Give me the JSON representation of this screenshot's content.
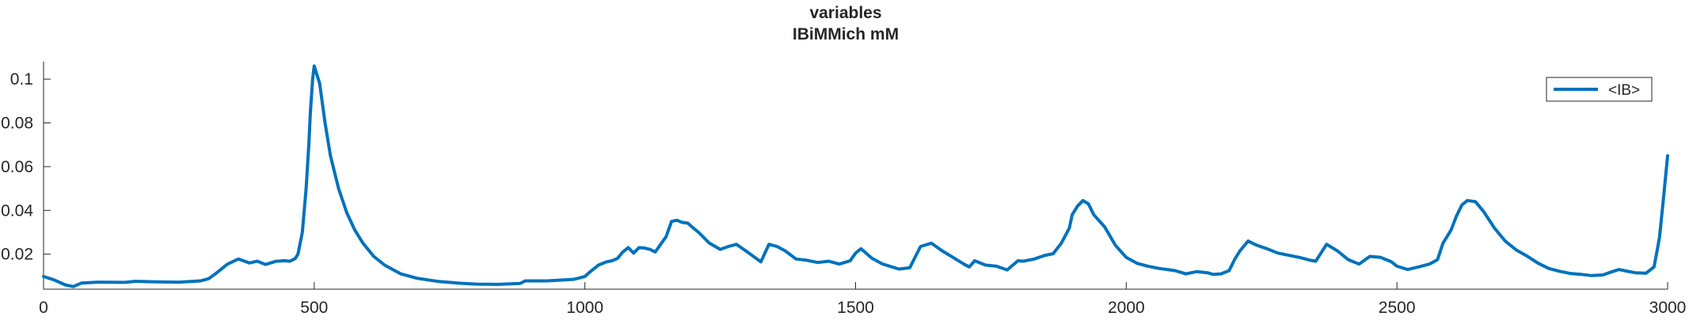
{
  "chart_data": {
    "type": "line",
    "title": "variables",
    "subtitle": "IBiMMich mM",
    "xlabel": "",
    "ylabel": "",
    "xlim": [
      0,
      3000
    ],
    "ylim": [
      0.004,
      0.108
    ],
    "grid": false,
    "legend_position": "top-right",
    "x_ticks": [
      0,
      500,
      1000,
      1500,
      2000,
      2500,
      3000
    ],
    "x_tick_labels": [
      "0",
      "500",
      "1000",
      "1500",
      "2000",
      "2500",
      "3000"
    ],
    "y_ticks": [
      0.02,
      0.04,
      0.06,
      0.08,
      0.1
    ],
    "y_tick_labels": [
      "0.02",
      "0.04",
      "0.06",
      "0.08",
      "0.1"
    ],
    "series": [
      {
        "name": "<IB>",
        "color": "#0072BD",
        "x": [
          0,
          20,
          40,
          55,
          70,
          100,
          150,
          170,
          200,
          250,
          290,
          305,
          320,
          340,
          360,
          380,
          395,
          410,
          430,
          445,
          455,
          465,
          470,
          478,
          485,
          490,
          493,
          497,
          500,
          510,
          520,
          530,
          545,
          560,
          575,
          590,
          610,
          630,
          660,
          690,
          730,
          770,
          800,
          840,
          880,
          890,
          930,
          980,
          1000,
          1010,
          1025,
          1040,
          1050,
          1060,
          1070,
          1080,
          1090,
          1100,
          1110,
          1120,
          1130,
          1150,
          1160,
          1170,
          1180,
          1190,
          1200,
          1210,
          1230,
          1250,
          1265,
          1280,
          1300,
          1325,
          1340,
          1355,
          1370,
          1390,
          1410,
          1430,
          1450,
          1470,
          1490,
          1500,
          1510,
          1530,
          1550,
          1580,
          1600,
          1620,
          1640,
          1660,
          1680,
          1700,
          1710,
          1720,
          1740,
          1760,
          1780,
          1800,
          1810,
          1830,
          1850,
          1865,
          1880,
          1895,
          1900,
          1910,
          1920,
          1930,
          1940,
          1960,
          1980,
          2000,
          2020,
          2040,
          2060,
          2090,
          2110,
          2130,
          2150,
          2160,
          2175,
          2190,
          2200,
          2210,
          2225,
          2240,
          2260,
          2280,
          2300,
          2320,
          2340,
          2350,
          2370,
          2390,
          2410,
          2430,
          2450,
          2470,
          2490,
          2500,
          2520,
          2540,
          2560,
          2575,
          2585,
          2600,
          2610,
          2620,
          2630,
          2645,
          2660,
          2680,
          2700,
          2720,
          2740,
          2760,
          2780,
          2800,
          2820,
          2840,
          2860,
          2880,
          2900,
          2910,
          2920,
          2940,
          2960,
          2975,
          2985,
          2992,
          3000
        ],
        "y": [
          0.0098,
          0.0082,
          0.006,
          0.0052,
          0.0068,
          0.0072,
          0.0071,
          0.0076,
          0.0074,
          0.0072,
          0.0078,
          0.0088,
          0.0115,
          0.0155,
          0.0178,
          0.016,
          0.0168,
          0.0153,
          0.0168,
          0.017,
          0.0168,
          0.018,
          0.02,
          0.03,
          0.05,
          0.07,
          0.085,
          0.1,
          0.106,
          0.098,
          0.08,
          0.065,
          0.05,
          0.039,
          0.031,
          0.025,
          0.019,
          0.015,
          0.011,
          0.009,
          0.0075,
          0.0067,
          0.0063,
          0.0062,
          0.0066,
          0.0078,
          0.0078,
          0.0085,
          0.0098,
          0.012,
          0.015,
          0.0165,
          0.017,
          0.018,
          0.021,
          0.023,
          0.0205,
          0.023,
          0.0228,
          0.0222,
          0.021,
          0.028,
          0.035,
          0.0355,
          0.0345,
          0.0342,
          0.032,
          0.03,
          0.025,
          0.0222,
          0.0235,
          0.0245,
          0.021,
          0.0165,
          0.0245,
          0.0235,
          0.0215,
          0.0178,
          0.0172,
          0.0162,
          0.0168,
          0.0155,
          0.017,
          0.0205,
          0.0225,
          0.0182,
          0.0155,
          0.0132,
          0.0138,
          0.0235,
          0.025,
          0.0215,
          0.0185,
          0.0155,
          0.0142,
          0.017,
          0.015,
          0.0145,
          0.0128,
          0.017,
          0.0168,
          0.0178,
          0.0195,
          0.0202,
          0.025,
          0.032,
          0.038,
          0.042,
          0.0445,
          0.043,
          0.038,
          0.0325,
          0.024,
          0.0185,
          0.0158,
          0.0145,
          0.0135,
          0.0125,
          0.011,
          0.012,
          0.0115,
          0.0108,
          0.011,
          0.0125,
          0.0175,
          0.0215,
          0.026,
          0.0242,
          0.0225,
          0.0205,
          0.0195,
          0.0185,
          0.0172,
          0.0168,
          0.0245,
          0.0215,
          0.0175,
          0.0155,
          0.019,
          0.0185,
          0.0165,
          0.0145,
          0.013,
          0.0142,
          0.0155,
          0.0175,
          0.025,
          0.031,
          0.0375,
          0.0425,
          0.0445,
          0.044,
          0.0395,
          0.032,
          0.026,
          0.022,
          0.0192,
          0.016,
          0.0135,
          0.0122,
          0.0112,
          0.0108,
          0.0102,
          0.0105,
          0.0122,
          0.013,
          0.0125,
          0.0115,
          0.0113,
          0.0142,
          0.0275,
          0.0445,
          0.065
        ]
      }
    ]
  }
}
